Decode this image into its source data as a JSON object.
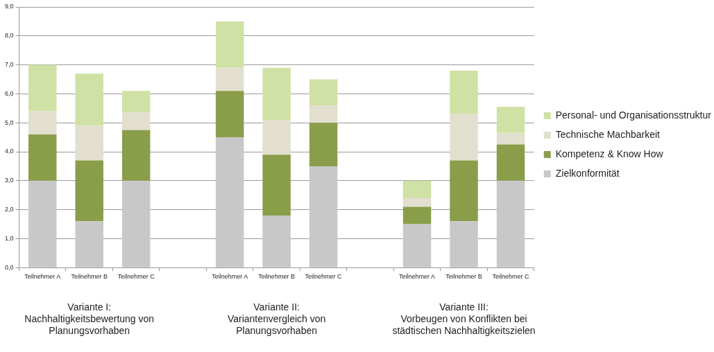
{
  "chart_data": {
    "type": "bar",
    "stacked": true,
    "categories": [
      "Teilnehmer A",
      "Teilnehmer B",
      "Teilnehmer C",
      null,
      "Teilnehmer A",
      "Teilnehmer B",
      "Teilnehmer C",
      null,
      "Teilnehmer A",
      "Teilnehmer B",
      "Teilnehmer C"
    ],
    "series": [
      {
        "name": "Zielkonformität",
        "color": "#c8c8c8",
        "values": [
          3.0,
          1.6,
          3.0,
          null,
          4.5,
          1.8,
          3.5,
          null,
          1.5,
          1.6,
          3.0
        ]
      },
      {
        "name": "Kompetenz & Know How",
        "color": "#8a9e4a",
        "values": [
          1.6,
          2.1,
          1.75,
          null,
          1.6,
          2.1,
          1.5,
          null,
          0.6,
          2.1,
          1.25
        ]
      },
      {
        "name": "Technische Machbarkeit",
        "color": "#e2dfcf",
        "values": [
          0.8,
          1.2,
          0.6,
          null,
          0.8,
          1.2,
          0.6,
          null,
          0.3,
          1.6,
          0.4
        ]
      },
      {
        "name": "Personal- und Organisationsstruktur",
        "color": "#cfe1a4",
        "values": [
          1.6,
          1.8,
          0.75,
          null,
          1.6,
          1.8,
          0.9,
          null,
          0.6,
          1.5,
          0.9
        ]
      }
    ],
    "ylim": [
      0,
      9
    ],
    "yticks": [
      {
        "value": 0,
        "label": "0,0"
      },
      {
        "value": 1,
        "label": "1,0"
      },
      {
        "value": 2,
        "label": "2,0"
      },
      {
        "value": 3,
        "label": "3,0"
      },
      {
        "value": 4,
        "label": "4,0"
      },
      {
        "value": 5,
        "label": "5,0"
      },
      {
        "value": 6,
        "label": "6,0"
      },
      {
        "value": 7,
        "label": "7,0"
      },
      {
        "value": 8,
        "label": "8,0"
      },
      {
        "value": 9,
        "label": "9,0"
      }
    ],
    "grid": "y",
    "legend": "right",
    "annotations": [
      "Variante I:\nNachhaltigkeitsbewertung von\nPlanungsvorhaben",
      "Variante II:\nVariantenvergleich von\nPlanungsvorhaben",
      "Variante III:\nVorbeugen von Konflikten bei\nstädtischen Nachhaltigkeitszielen"
    ]
  }
}
